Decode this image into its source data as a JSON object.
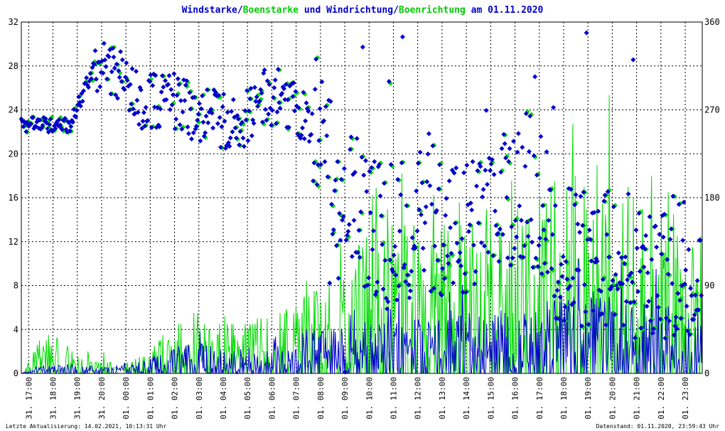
{
  "chart_data": {
    "type": "scatter",
    "title_parts": [
      {
        "text": "Windstarke",
        "color": "#0000cc"
      },
      {
        "text": "/",
        "color": "#0000cc"
      },
      {
        "text": "Boenstarke",
        "color": "#00cc00"
      },
      {
        "text": " und ",
        "color": "#0000cc"
      },
      {
        "text": "Windrichtung",
        "color": "#0000cc"
      },
      {
        "text": "/",
        "color": "#0000cc"
      },
      {
        "text": "Boenrichtung",
        "color": "#00cc00"
      },
      {
        "text": " am 01.11.2020",
        "color": "#0000cc"
      }
    ],
    "y_left": {
      "min": 0,
      "max": 32,
      "ticks": [
        "0",
        "4",
        "8",
        "12",
        "16",
        "20",
        "24",
        "28",
        "32"
      ]
    },
    "y_right": {
      "min": 0,
      "max": 360,
      "ticks": [
        "0",
        "90",
        "180",
        "270",
        "360"
      ]
    },
    "x_ticks": [
      "31. 17:00",
      "31. 18:00",
      "31. 19:00",
      "31. 20:00",
      "01. 00:00",
      "01. 01:00",
      "01. 02:00",
      "01. 03:00",
      "01. 04:00",
      "01. 05:00",
      "01. 06:00",
      "01. 07:00",
      "01. 08:00",
      "01. 09:00",
      "01. 10:00",
      "01. 11:00",
      "01. 12:00",
      "01. 13:00",
      "01. 14:00",
      "01. 15:00",
      "01. 16:00",
      "01. 17:00",
      "01. 18:00",
      "01. 19:00",
      "01. 20:00",
      "01. 21:00",
      "01. 22:00",
      "01. 23:00"
    ],
    "grid": true,
    "colors": {
      "wind": "#0000cc",
      "gust": "#00dd00",
      "grid": "#000000"
    },
    "series": [
      {
        "name": "Windstarke",
        "kind": "line"
      },
      {
        "name": "Boenstarke",
        "kind": "line"
      },
      {
        "name": "Windrichtung",
        "kind": "markers"
      },
      {
        "name": "Boenrichtung",
        "kind": "markers"
      }
    ],
    "direction_trend_deg": [
      [
        0,
        255
      ],
      [
        2,
        255
      ],
      [
        3,
        315
      ],
      [
        4,
        305
      ],
      [
        5,
        278
      ],
      [
        6,
        280
      ],
      [
        7,
        270
      ],
      [
        8,
        262
      ],
      [
        9,
        250
      ],
      [
        10,
        285
      ],
      [
        11,
        280
      ],
      [
        12,
        260
      ],
      [
        13,
        200
      ],
      [
        14,
        150
      ],
      [
        15,
        140
      ],
      [
        16,
        150
      ],
      [
        17,
        160
      ],
      [
        18,
        140
      ],
      [
        19,
        150
      ],
      [
        20,
        180
      ],
      [
        21,
        200
      ],
      [
        22,
        130
      ],
      [
        23,
        120
      ],
      [
        24,
        115
      ],
      [
        25,
        110
      ],
      [
        26,
        105
      ],
      [
        27,
        110
      ],
      [
        28,
        120
      ]
    ],
    "wind_trend_max": [
      [
        0,
        0
      ],
      [
        1,
        1
      ],
      [
        4,
        0.5
      ],
      [
        6,
        2
      ],
      [
        7,
        3
      ],
      [
        8,
        2.5
      ],
      [
        9,
        2
      ],
      [
        11,
        2.5
      ],
      [
        12,
        4
      ],
      [
        13,
        4.5
      ],
      [
        14,
        5
      ],
      [
        15,
        5
      ],
      [
        16,
        5
      ],
      [
        17,
        5
      ],
      [
        18,
        5.5
      ],
      [
        19,
        5.5
      ],
      [
        20,
        6
      ],
      [
        21,
        6
      ],
      [
        22,
        7
      ],
      [
        23,
        7
      ],
      [
        24,
        7.5
      ],
      [
        25,
        7.5
      ],
      [
        26,
        7
      ],
      [
        27,
        6
      ],
      [
        28,
        5.5
      ]
    ],
    "gust_trend_max": [
      [
        0,
        0
      ],
      [
        1,
        4
      ],
      [
        2,
        2.5
      ],
      [
        3,
        2.5
      ],
      [
        4,
        0.5
      ],
      [
        5,
        2
      ],
      [
        6,
        4
      ],
      [
        7,
        6
      ],
      [
        8,
        5
      ],
      [
        9,
        5
      ],
      [
        11,
        6
      ],
      [
        12,
        8
      ],
      [
        13,
        9
      ],
      [
        14,
        12
      ],
      [
        15,
        14
      ],
      [
        16,
        14
      ],
      [
        17,
        14
      ],
      [
        18,
        14
      ],
      [
        19,
        14
      ],
      [
        20,
        14
      ],
      [
        21,
        16
      ],
      [
        22,
        18
      ],
      [
        23,
        18
      ],
      [
        24,
        20
      ],
      [
        25,
        20
      ],
      [
        26,
        18
      ],
      [
        27,
        17
      ],
      [
        28,
        15
      ]
    ]
  },
  "footer": {
    "left": "Letzte Aktualisierung: 14.02.2021, 10:13:31 Uhr",
    "right": "Datenstand: 01.11.2020, 23:59:43 Uhr"
  }
}
